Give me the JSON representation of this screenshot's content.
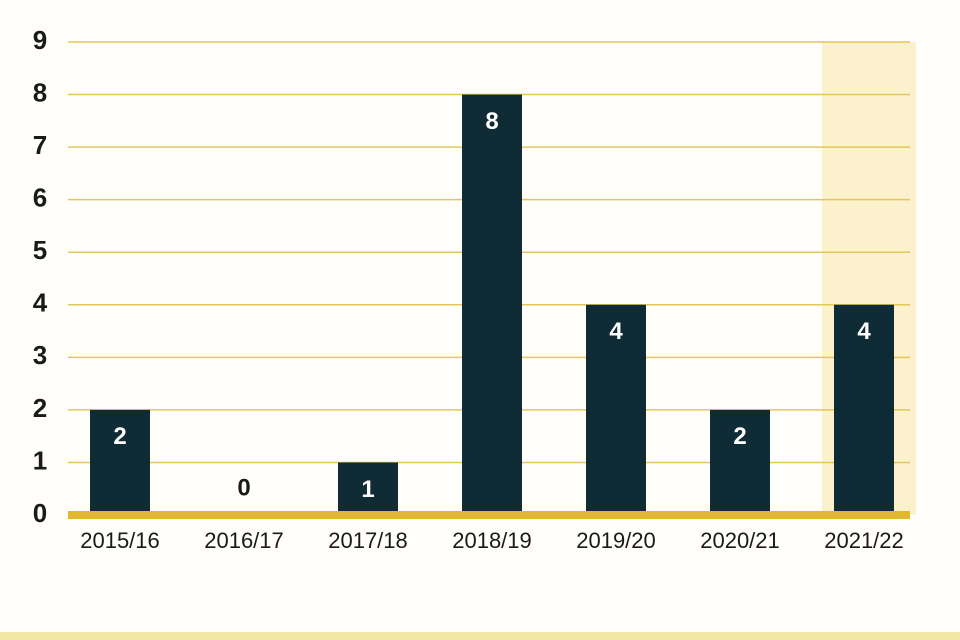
{
  "chart_data": {
    "type": "bar",
    "categories": [
      "2015/16",
      "2016/17",
      "2017/18",
      "2018/19",
      "2019/20",
      "2020/21",
      "2021/22"
    ],
    "values": [
      2,
      0,
      1,
      8,
      4,
      2,
      4
    ],
    "color": "#0f2b36",
    "ylim": [
      0,
      9
    ],
    "yticks": [
      0,
      1,
      2,
      3,
      4,
      5,
      6,
      7,
      8,
      9
    ],
    "grid": true,
    "grid_color": "#e3c65a",
    "axis_color": "#e0b830",
    "highlight_category": "2021/22",
    "highlight_color": "#fbf1cc"
  }
}
